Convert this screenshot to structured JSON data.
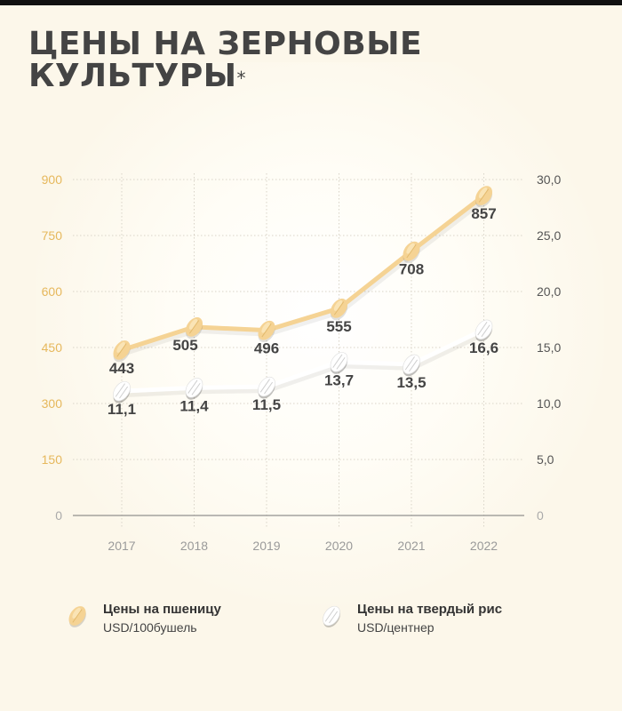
{
  "header": {
    "title_line1": "ЦЕНЫ НА ЗЕРНОВЫЕ",
    "title_line2": "КУЛЬТУРЫ",
    "title_mark": "*"
  },
  "colors": {
    "background": "#fcf7ea",
    "wheat": "#f5d394",
    "wheat_axis": "#e6b85c",
    "rice": "#ffffff",
    "text": "#444444"
  },
  "chart_data": {
    "type": "line",
    "x": [
      "2017",
      "2018",
      "2019",
      "2020",
      "2021",
      "2022"
    ],
    "y_left": {
      "ticks": [
        "0",
        "150",
        "300",
        "450",
        "600",
        "750",
        "900"
      ],
      "range": [
        0,
        900
      ]
    },
    "y_right": {
      "ticks": [
        "0",
        "5,0",
        "10,0",
        "15,0",
        "20,0",
        "25,0",
        "30,0"
      ],
      "range": [
        0,
        30
      ]
    },
    "grid": true,
    "legend_position": "bottom",
    "series": [
      {
        "name": "Цены на пшеницу",
        "unit": "USD/100бушель",
        "axis": "left",
        "icon": "wheat-grain-icon",
        "values": [
          443,
          505,
          496,
          555,
          708,
          857
        ],
        "labels": [
          "443",
          "505",
          "496",
          "555",
          "708",
          "857"
        ]
      },
      {
        "name": "Цены на твердый рис",
        "unit": "USD/центнер",
        "axis": "right",
        "icon": "rice-grain-icon",
        "values": [
          11.1,
          11.4,
          11.5,
          13.7,
          13.5,
          16.6
        ],
        "labels": [
          "11,1",
          "11,4",
          "11,5",
          "13,7",
          "13,5",
          "16,6"
        ]
      }
    ]
  }
}
